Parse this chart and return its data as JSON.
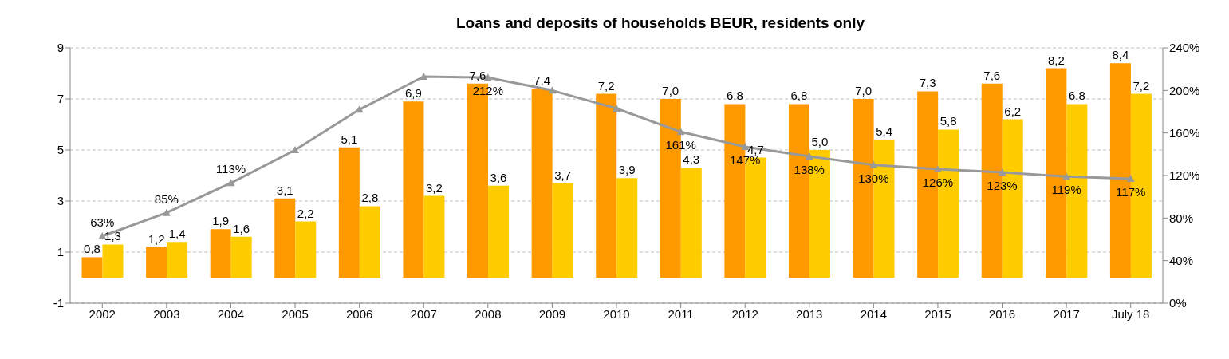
{
  "chart_data": {
    "type": "bar",
    "title": "Loans and deposits of households BEUR, residents only",
    "categories": [
      "2002",
      "2003",
      "2004",
      "2005",
      "2006",
      "2007",
      "2008",
      "2009",
      "2010",
      "2011",
      "2012",
      "2013",
      "2014",
      "2015",
      "2016",
      "2017",
      "July 18"
    ],
    "series": [
      {
        "color": "#ff9900",
        "values": [
          0.8,
          1.2,
          1.9,
          3.1,
          5.1,
          6.9,
          7.6,
          7.4,
          7.2,
          7.0,
          6.8,
          6.8,
          7.0,
          7.3,
          7.6,
          8.2,
          8.4
        ],
        "value_labels": [
          "0,8",
          "1,2",
          "1,9",
          "3,1",
          "5,1",
          "6,9",
          "7,6",
          "7,4",
          "7,2",
          "7,0",
          "6,8",
          "6,8",
          "7,0",
          "7,3",
          "7,6",
          "8,2",
          "8,4"
        ]
      },
      {
        "color": "#ffcc00",
        "values": [
          1.3,
          1.4,
          1.6,
          2.2,
          2.8,
          3.2,
          3.6,
          3.7,
          3.9,
          4.3,
          4.7,
          5.0,
          5.4,
          5.8,
          6.2,
          6.8,
          7.2
        ],
        "value_labels": [
          "1,3",
          "1,4",
          "1,6",
          "2,2",
          "2,8",
          "3,2",
          "3,6",
          "3,7",
          "3,9",
          "4,3",
          "4,7",
          "5,0",
          "5,4",
          "5,8",
          "6,2",
          "6,8",
          "7,2"
        ]
      },
      {
        "type": "line",
        "axis": "y2",
        "color": "#999999",
        "marker": "triangle",
        "values": [
          63,
          85,
          113,
          144,
          182,
          213,
          212,
          200,
          183,
          161,
          147,
          138,
          130,
          126,
          123,
          119,
          117
        ],
        "value_labels": [
          "63%",
          "85%",
          "113%",
          null,
          null,
          null,
          "212%",
          null,
          null,
          "161%",
          "147%",
          "138%",
          "130%",
          "126%",
          "123%",
          "119%",
          "117%"
        ]
      }
    ],
    "ylim": [
      -1,
      9
    ],
    "yticks": [
      -1,
      1,
      3,
      5,
      7,
      9
    ],
    "y2lim": [
      0,
      240
    ],
    "y2ticks": [
      {
        "value": 0,
        "label": "0%"
      },
      {
        "value": 40,
        "label": "40%"
      },
      {
        "value": 80,
        "label": "80%"
      },
      {
        "value": 120,
        "label": "120%"
      },
      {
        "value": 160,
        "label": "160%"
      },
      {
        "value": 200,
        "label": "200%"
      },
      {
        "value": 240,
        "label": "240%"
      }
    ],
    "grid": "y",
    "legend": false
  }
}
